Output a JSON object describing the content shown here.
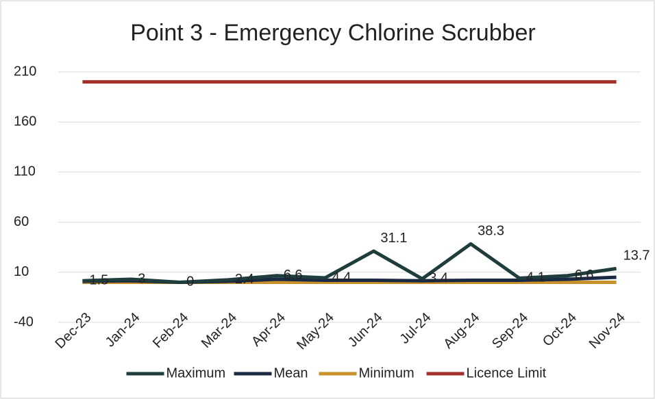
{
  "chart_data": {
    "type": "line",
    "title": "Point 3 - Emergency Chlorine Scrubber",
    "categories": [
      "Dec-23",
      "Jan-24",
      "Feb-24",
      "Mar-24",
      "Apr-24",
      "May-24",
      "Jun-24",
      "Jul-24",
      "Aug-24",
      "Sep-24",
      "Oct-24",
      "Nov-24"
    ],
    "series": [
      {
        "name": "Maximum",
        "color": "#1f3d3c",
        "values": [
          1.5,
          3,
          0,
          2.4,
          6.6,
          4.4,
          31.1,
          3.4,
          38.3,
          4.1,
          6.6,
          13.7
        ],
        "data_labels": true
      },
      {
        "name": "Mean",
        "color": "#1b2a44",
        "values": [
          1,
          1.5,
          0,
          1,
          3,
          2,
          2,
          1.5,
          2,
          2,
          3,
          5
        ],
        "data_labels": false
      },
      {
        "name": "Minimum",
        "color": "#c8912c",
        "values": [
          0,
          0,
          0,
          0,
          0,
          0,
          0,
          0,
          0,
          0,
          0,
          0
        ],
        "data_labels": false
      },
      {
        "name": "Licence Limit",
        "color": "#a3302a",
        "values": [
          200,
          200,
          200,
          200,
          200,
          200,
          200,
          200,
          200,
          200,
          200,
          200
        ],
        "data_labels": false
      }
    ],
    "ylim": [
      -40,
      210
    ],
    "yticks": [
      -40,
      10,
      60,
      110,
      160,
      210
    ],
    "grid": true,
    "legend": "bottom"
  }
}
